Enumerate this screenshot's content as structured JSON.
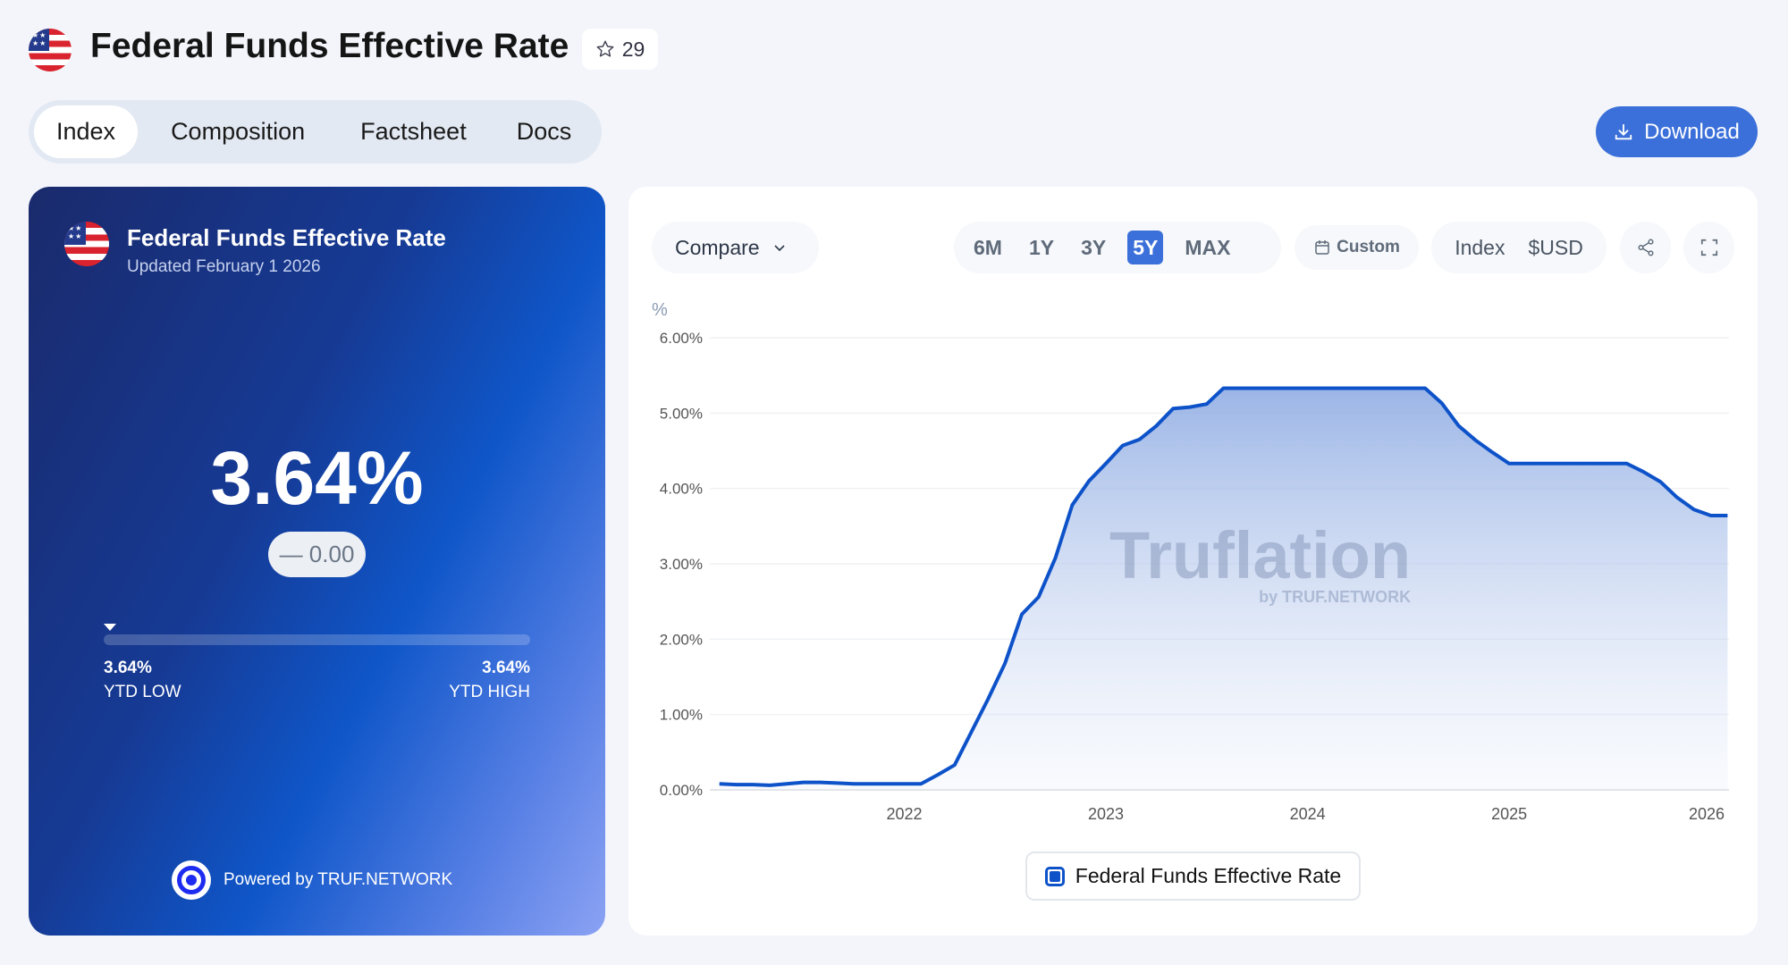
{
  "header": {
    "title": "Federal Funds Effective Rate",
    "star_count": "29",
    "star_icon": "star-icon",
    "flag_icon": "us-flag-icon"
  },
  "tabs": [
    {
      "label": "Index",
      "active": true
    },
    {
      "label": "Composition"
    },
    {
      "label": "Factsheet"
    },
    {
      "label": "Docs"
    }
  ],
  "download_label": "Download",
  "card": {
    "title": "Federal Funds Effective Rate",
    "updated": "Updated February 1 2026",
    "value": "3.64%",
    "change": "— 0.00",
    "ytd_low_value": "3.64%",
    "ytd_low_label": "YTD LOW",
    "ytd_high_value": "3.64%",
    "ytd_high_label": "YTD HIGH",
    "ytd_position": 0,
    "powered_by": "Powered by TRUF.NETWORK"
  },
  "toolbar": {
    "compare": "Compare",
    "ranges": [
      "6M",
      "1Y",
      "3Y",
      "5Y",
      "MAX"
    ],
    "active_range": "5Y",
    "custom": "Custom",
    "index": "Index",
    "usd": "$USD"
  },
  "watermark": {
    "brand": "Truflation",
    "sub": "by TRUF.NETWORK"
  },
  "colors": {
    "accent": "#3b6fd9",
    "line": "#0d52c9"
  },
  "chart_data": {
    "type": "area",
    "title": "Federal Funds Effective Rate",
    "ylabel": "%",
    "xlabel": "",
    "ylim": [
      0,
      6
    ],
    "yticks": [
      0,
      1,
      2,
      3,
      4,
      5,
      6
    ],
    "ytick_labels": [
      "0.00%",
      "1.00%",
      "2.00%",
      "3.00%",
      "4.00%",
      "5.00%",
      "6.00%"
    ],
    "xlim": [
      2021.08,
      2026.09
    ],
    "xticks": [
      2022,
      2023,
      2024,
      2025,
      2026
    ],
    "xtick_labels": [
      "2022",
      "2023",
      "2024",
      "2025",
      "2026"
    ],
    "grid": true,
    "legend": "bottom-center",
    "series": [
      {
        "name": "Federal Funds Effective Rate",
        "x_start": 2021.083,
        "x_step_months": 1,
        "values": [
          0.08,
          0.07,
          0.07,
          0.06,
          0.08,
          0.1,
          0.1,
          0.09,
          0.08,
          0.08,
          0.08,
          0.08,
          0.08,
          0.2,
          0.33,
          0.77,
          1.21,
          1.68,
          2.33,
          2.56,
          3.08,
          3.78,
          4.1,
          4.33,
          4.57,
          4.65,
          4.83,
          5.06,
          5.08,
          5.12,
          5.33,
          5.33,
          5.33,
          5.33,
          5.33,
          5.33,
          5.33,
          5.33,
          5.33,
          5.33,
          5.33,
          5.33,
          5.33,
          5.13,
          4.83,
          4.64,
          4.48,
          4.33,
          4.33,
          4.33,
          4.33,
          4.33,
          4.33,
          4.33,
          4.33,
          4.22,
          4.09,
          3.88,
          3.72,
          3.64,
          3.64
        ]
      }
    ]
  }
}
